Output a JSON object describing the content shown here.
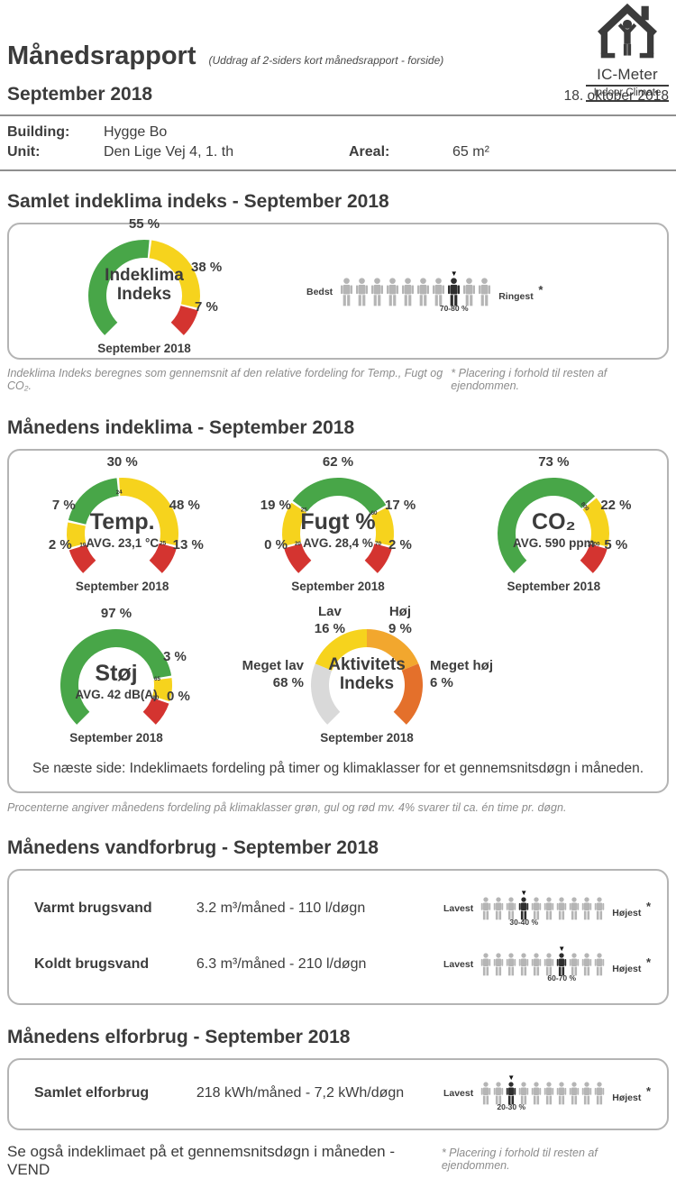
{
  "header": {
    "title": "Månedsrapport",
    "subtitle": "(Uddrag af 2-siders kort månedsrapport - forside)",
    "period": "September 2018",
    "date": "18. oktober 2018",
    "logo_name": "IC-Meter",
    "logo_tagline": "Indoor Climate"
  },
  "building": {
    "rows": [
      {
        "label": "Building:",
        "value": "Hygge Bo",
        "label2": "",
        "value2": ""
      },
      {
        "label": "Unit:",
        "value": "Den Lige Vej 4, 1. th",
        "label2": "Areal:",
        "value2": "65 m²"
      }
    ]
  },
  "colors": {
    "green": "#48a648",
    "yellow": "#f6d31d",
    "red": "#d43430",
    "gray": "#d9d9d9",
    "amber": "#f2a72e",
    "orange": "#e4702b",
    "person": "#b5b5b5",
    "person_dark": "#2d2d2d",
    "threshold_text": "#333333"
  },
  "section1": {
    "heading": "Samlet indeklima indeks - September 2018",
    "people": {
      "left": "Bedst",
      "right": "Ringest",
      "star": "*",
      "range": "70-80 %",
      "count": 10,
      "highlight": 8
    },
    "footnote_left": "Indeklima Indeks beregnes som gennemsnit af den relative fordeling for Temp., Fugt og CO₂.",
    "footnote_right": "* Placering i forhold til resten af ejendommen."
  },
  "section2": {
    "heading": "Månedens indeklima - September 2018",
    "note": "Se næste side: Indeklimaets fordeling på timer og klimaklasser for et gennemsnitsdøgn i måneden.",
    "footnote": "Procenterne angiver månedens fordeling på klimaklasser grøn, gul og rød mv. 4% svarer til ca. én time pr. døgn."
  },
  "gauges": {
    "indeklima": {
      "title_lines": [
        "Indeklima",
        "Indeks"
      ],
      "period": "September 2018",
      "segments": [
        {
          "color": "green",
          "value": 55
        },
        {
          "color": "yellow",
          "value": 38
        },
        {
          "color": "red",
          "value": 7
        }
      ],
      "thresholds": [
        "",
        ""
      ],
      "callouts": [
        {
          "pos": "top",
          "lines": [
            "55 %"
          ]
        },
        {
          "pos": "ur",
          "lines": [
            "38 %"
          ]
        },
        {
          "pos": "lr",
          "lines": [
            "7 %"
          ]
        }
      ]
    },
    "temp": {
      "title": "Temp.",
      "subtitle": "AVG. 23,1 °C",
      "period": "September 2018",
      "segments": [
        {
          "color": "red",
          "value": 2
        },
        {
          "color": "yellow",
          "value": 7
        },
        {
          "color": "green",
          "value": 30
        },
        {
          "color": "yellow",
          "value": 48
        },
        {
          "color": "red",
          "value": 13
        }
      ],
      "thresholds": [
        "19",
        "",
        "24",
        "25"
      ],
      "callouts": [
        {
          "pos": "top",
          "lines": [
            "30 %"
          ]
        },
        {
          "pos": "ul",
          "lines": [
            "7 %"
          ]
        },
        {
          "pos": "ur",
          "lines": [
            "48 %"
          ]
        },
        {
          "pos": "ll",
          "lines": [
            "2 %"
          ]
        },
        {
          "pos": "lr",
          "lines": [
            "13 %"
          ]
        }
      ]
    },
    "fugt": {
      "title": "Fugt %",
      "subtitle": "AVG. 28,4 %",
      "period": "September 2018",
      "segments": [
        {
          "color": "red",
          "value": 0
        },
        {
          "color": "yellow",
          "value": 19
        },
        {
          "color": "green",
          "value": 62
        },
        {
          "color": "yellow",
          "value": 17
        },
        {
          "color": "red",
          "value": 2
        }
      ],
      "thresholds": [
        "20",
        "25",
        "60",
        "70"
      ],
      "callouts": [
        {
          "pos": "top",
          "lines": [
            "62 %"
          ]
        },
        {
          "pos": "ul",
          "lines": [
            "19 %"
          ]
        },
        {
          "pos": "ur",
          "lines": [
            "17 %"
          ]
        },
        {
          "pos": "ll",
          "lines": [
            "0 %"
          ]
        },
        {
          "pos": "lr",
          "lines": [
            "2 %"
          ]
        }
      ]
    },
    "co2": {
      "title": "CO₂",
      "subtitle": "AVG. 590 ppm",
      "period": "September 2018",
      "segments": [
        {
          "color": "green",
          "value": 73
        },
        {
          "color": "yellow",
          "value": 22
        },
        {
          "color": "red",
          "value": 5
        }
      ],
      "thresholds": [
        "800",
        "1000"
      ],
      "callouts": [
        {
          "pos": "top",
          "lines": [
            "73 %"
          ]
        },
        {
          "pos": "ur",
          "lines": [
            "22 %"
          ]
        },
        {
          "pos": "lr",
          "lines": [
            "5 %"
          ]
        }
      ]
    },
    "stoj": {
      "title": "Støj",
      "subtitle": "AVG. 42 dB(A)",
      "period": "September 2018",
      "segments": [
        {
          "color": "green",
          "value": 97
        },
        {
          "color": "yellow",
          "value": 3
        },
        {
          "color": "red",
          "value": 0
        }
      ],
      "thresholds": [
        "65",
        "80"
      ],
      "callouts": [
        {
          "pos": "top",
          "lines": [
            "97 %"
          ]
        },
        {
          "pos": "ur",
          "lines": [
            "3 %"
          ]
        },
        {
          "pos": "lr",
          "lines": [
            "0 %"
          ]
        }
      ]
    },
    "aktivitet": {
      "title_lines": [
        "Aktivitets",
        "Indeks"
      ],
      "period": "September 2018",
      "layout": "equal",
      "segments": [
        {
          "color": "gray",
          "value": 68
        },
        {
          "color": "yellow",
          "value": 16
        },
        {
          "color": "amber",
          "value": 9
        },
        {
          "color": "orange",
          "value": 6
        }
      ],
      "thresholds": [],
      "callouts": [
        {
          "pos": "tl",
          "lines": [
            "Lav",
            "16 %"
          ]
        },
        {
          "pos": "tr",
          "lines": [
            "Høj",
            "9 %"
          ]
        },
        {
          "pos": "l",
          "lines": [
            "Meget lav",
            "68 %"
          ]
        },
        {
          "pos": "r",
          "lines": [
            "Meget høj",
            "6 %"
          ]
        }
      ]
    }
  },
  "section3": {
    "heading": "Månedens vandforbrug - September 2018",
    "rows": [
      {
        "label": "Varmt brugsvand",
        "value": "3.2 m³/måned - 110 l/døgn",
        "people": {
          "left": "Lavest",
          "right": "Højest",
          "star": "*",
          "range": "30-40 %",
          "count": 10,
          "highlight": 4
        }
      },
      {
        "label": "Koldt brugsvand",
        "value": "6.3 m³/måned - 210 l/døgn",
        "people": {
          "left": "Lavest",
          "right": "Højest",
          "star": "*",
          "range": "60-70 %",
          "count": 10,
          "highlight": 7
        }
      }
    ]
  },
  "section4": {
    "heading": "Månedens elforbrug - September 2018",
    "rows": [
      {
        "label": "Samlet elforbrug",
        "value": "218 kWh/måned - 7,2 kWh/døgn",
        "people": {
          "left": "Lavest",
          "right": "Højest",
          "star": "*",
          "range": "20-30 %",
          "count": 10,
          "highlight": 3
        }
      }
    ]
  },
  "footer": {
    "left": "Se også indeklimaet på et gennemsnitsdøgn i måneden - VEND",
    "right": "* Placering i forhold til resten af ejendommen."
  }
}
